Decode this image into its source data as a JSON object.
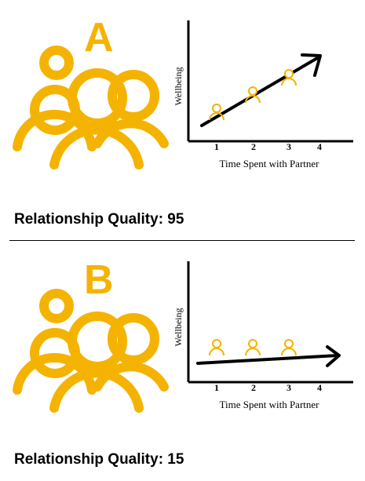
{
  "colors": {
    "accent": "#F5B301",
    "ink": "#000000"
  },
  "panels": [
    {
      "letter": "A",
      "quality_label": "Relationship Quality: 95",
      "chart_data": {
        "type": "line",
        "xlabel": "Time Spent with Partner",
        "ylabel": "Wellbeing",
        "x_ticks": [
          "1",
          "2",
          "3",
          "4"
        ],
        "trend": "increasing",
        "markers": [
          {
            "x": 1,
            "y": 1.0,
            "icon": "person-icon"
          },
          {
            "x": 2,
            "y": 2.0,
            "icon": "person-icon"
          },
          {
            "x": 3,
            "y": 3.0,
            "icon": "person-icon"
          }
        ]
      }
    },
    {
      "letter": "B",
      "quality_label": "Relationship Quality: 15",
      "chart_data": {
        "type": "line",
        "xlabel": "Time Spent with Partner",
        "ylabel": "Wellbeing",
        "x_ticks": [
          "1",
          "2",
          "3",
          "4"
        ],
        "trend": "flat",
        "markers": [
          {
            "x": 1,
            "y": 1.0,
            "icon": "person-icon"
          },
          {
            "x": 2,
            "y": 1.0,
            "icon": "person-icon"
          },
          {
            "x": 3,
            "y": 1.0,
            "icon": "person-icon"
          }
        ]
      }
    }
  ]
}
